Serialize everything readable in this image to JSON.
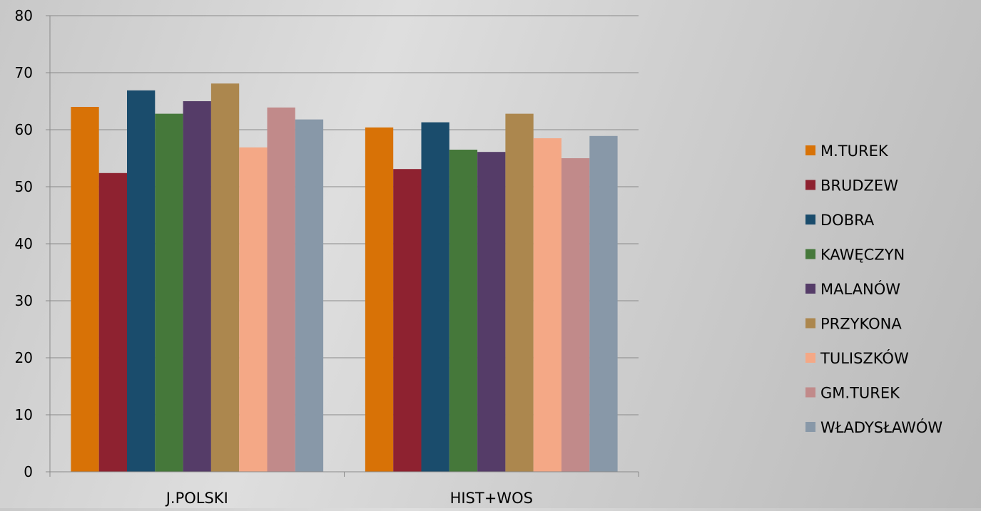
{
  "chart_data": {
    "type": "bar",
    "categories": [
      "J.POLSKI",
      "HIST+WOS"
    ],
    "series": [
      {
        "name": "M.TUREK",
        "values": [
          64.0,
          60.4
        ],
        "color": "#D87206"
      },
      {
        "name": "BRUDZEW",
        "values": [
          52.4,
          53.1
        ],
        "color": "#8E2230"
      },
      {
        "name": "DOBRA",
        "values": [
          66.9,
          61.3
        ],
        "color": "#1A4C6C"
      },
      {
        "name": "KAWĘCZYN",
        "values": [
          62.8,
          56.5
        ],
        "color": "#45783A"
      },
      {
        "name": "MALANÓW",
        "values": [
          65.0,
          56.1
        ],
        "color": "#553C68"
      },
      {
        "name": "PRZYKONA",
        "values": [
          68.1,
          62.8
        ],
        "color": "#AC874E"
      },
      {
        "name": "TULISZKÓW",
        "values": [
          56.9,
          58.5
        ],
        "color": "#F4A886"
      },
      {
        "name": "GM.TUREK",
        "values": [
          63.9,
          55.0
        ],
        "color": "#C18A8A"
      },
      {
        "name": "WŁADYSŁAWÓW",
        "values": [
          61.8,
          58.9
        ],
        "color": "#8898A8"
      }
    ],
    "title": "",
    "xlabel": "",
    "ylabel": "",
    "ylim": [
      0,
      80
    ],
    "yticks": [
      "0",
      "10",
      "20",
      "30",
      "40",
      "50",
      "60",
      "70",
      "80"
    ],
    "grid": true,
    "legend_position": "right"
  }
}
